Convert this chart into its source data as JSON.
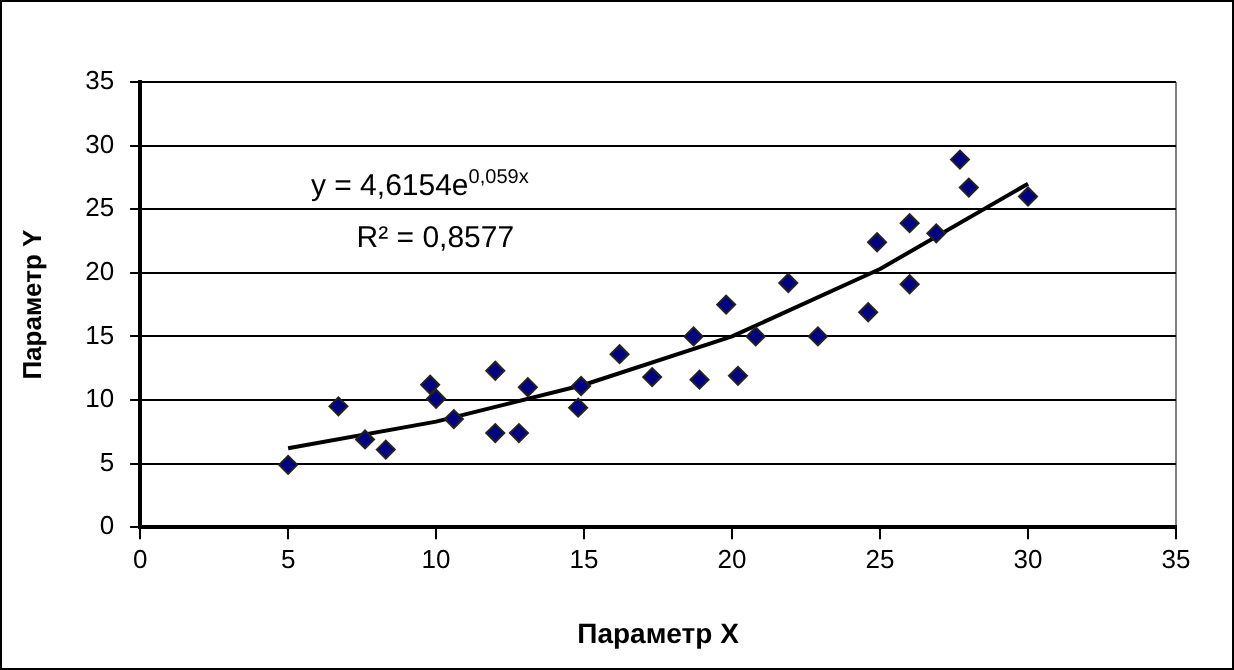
{
  "chart_data": {
    "type": "scatter",
    "xlabel": "Параметр X",
    "ylabel": "Параметр Y",
    "xlim": [
      0,
      35
    ],
    "xticks": [
      0,
      5,
      10,
      15,
      20,
      25,
      30,
      35
    ],
    "ylim": [
      0,
      35
    ],
    "yticks": [
      0,
      5,
      10,
      15,
      20,
      25,
      30,
      35
    ],
    "grid": "y",
    "legend": false,
    "annotations": [
      "y = 4,6154e$^{0,059x}$",
      "R² = 0,8577"
    ],
    "series": [
      {
        "marker": "diamond",
        "color": "#000080",
        "x": [
          5,
          6.7,
          7.6,
          8.3,
          9.8,
          10,
          10.6,
          12,
          12,
          12.8,
          13.1,
          14.8,
          14.9,
          16.2,
          17.3,
          18.7,
          18.9,
          19.8,
          20.2,
          20.8,
          21.9,
          22.9,
          24.6,
          24.9,
          26,
          26,
          26.9,
          27.7,
          28,
          30
        ],
        "values": [
          4.9,
          9.5,
          6.9,
          6.1,
          11.2,
          10.1,
          8.5,
          12.3,
          7.4,
          7.4,
          11,
          9.4,
          11.1,
          13.6,
          11.8,
          15,
          11.6,
          17.5,
          11.9,
          15,
          19.2,
          15,
          16.9,
          22.4,
          19.1,
          23.9,
          23.1,
          28.9,
          26.7,
          26
        ]
      },
      {
        "type": "line",
        "marker": "none",
        "color": "#000000",
        "x": [
          5,
          10,
          15,
          20,
          25,
          30
        ],
        "values": [
          6.2,
          8.3,
          11.2,
          15,
          20.3,
          27
        ]
      }
    ]
  }
}
